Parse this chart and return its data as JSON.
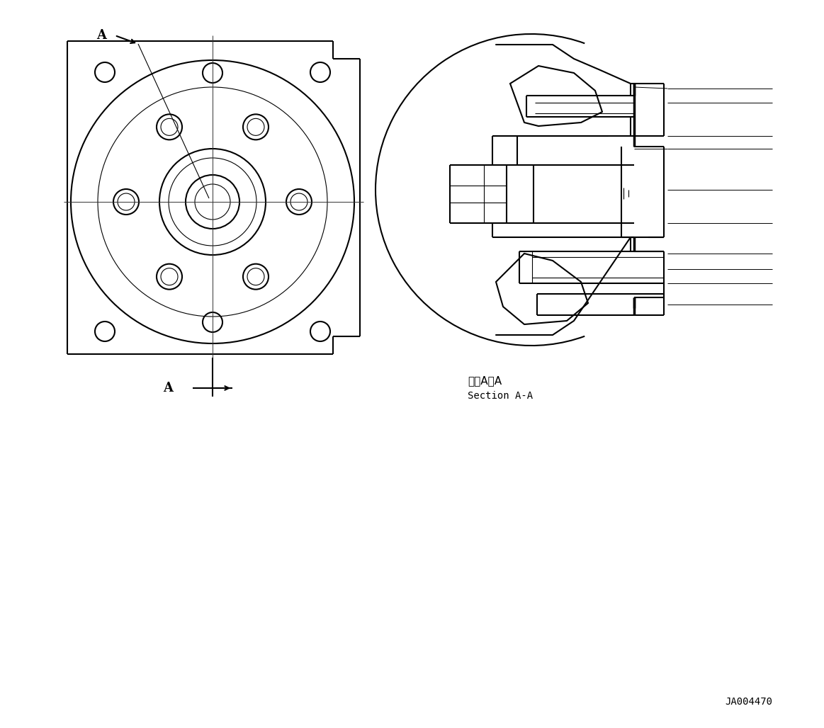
{
  "bg_color": "#ffffff",
  "line_color": "#000000",
  "fig_id": "JA004470",
  "section_label_jp": "断面A－A",
  "section_label_en": "Section A-A",
  "lw_main": 1.5,
  "lw_thin": 0.8,
  "lw_thick": 2.5
}
